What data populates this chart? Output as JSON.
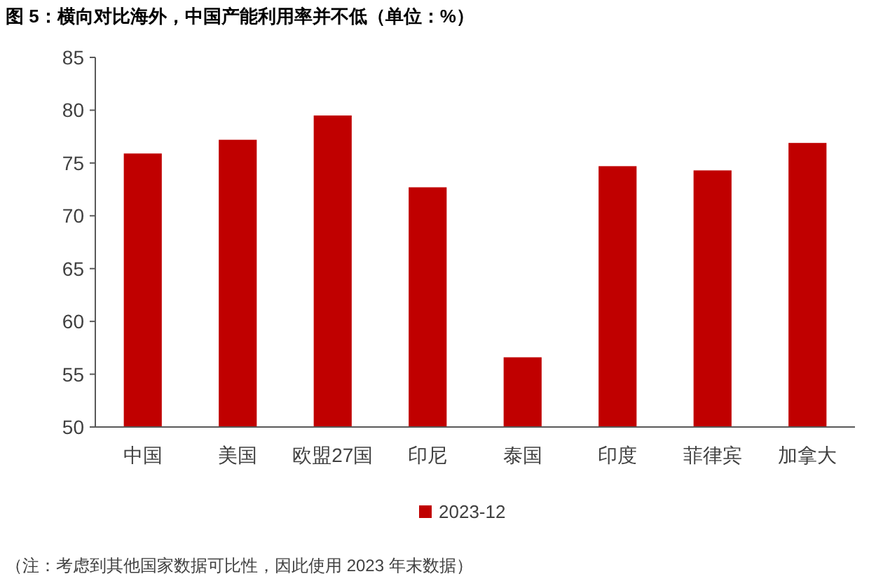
{
  "chart_data": {
    "type": "bar",
    "title": "图 5：横向对比海外，中国产能利用率并不低（单位：%）",
    "categories": [
      "中国",
      "美国",
      "欧盟27国",
      "印尼",
      "泰国",
      "印度",
      "菲律宾",
      "加拿大"
    ],
    "series": [
      {
        "name": "2023-12",
        "color": "#c00000",
        "values": [
          75.9,
          77.2,
          79.5,
          72.7,
          56.6,
          74.7,
          74.3,
          76.9
        ]
      }
    ],
    "ylim": [
      50,
      85
    ],
    "yticks": [
      50,
      55,
      60,
      65,
      70,
      75,
      80,
      85
    ],
    "grid": false,
    "legend": "bottom",
    "annotations": [
      "（注：考虑到其他国家数据可比性，因此使用 2023 年末数据）"
    ]
  }
}
